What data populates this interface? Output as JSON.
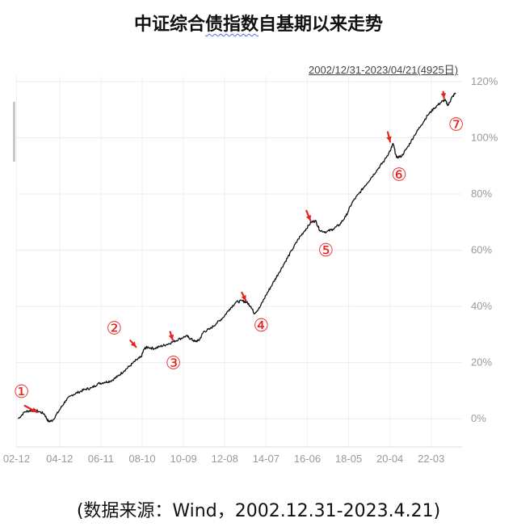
{
  "title": {
    "part1": "中证综合",
    "part2": "债指数",
    "part3": "自基期以来走势"
  },
  "date_range": "2002/12/31-2023/04/21(4925日)",
  "source": "(数据来源：Wind，2002.12.31-2023.4.21)",
  "chart_data": {
    "type": "line",
    "x_tick_labels": [
      "02-12",
      "04-12",
      "06-11",
      "08-10",
      "10-09",
      "12-08",
      "14-07",
      "16-06",
      "18-05",
      "20-04",
      "22-03"
    ],
    "y_tick_labels": [
      "0%",
      "20%",
      "40%",
      "60%",
      "80%",
      "100%",
      "120%"
    ],
    "ylim": [
      -10,
      122
    ],
    "xlim": [
      2002.9,
      2023.6
    ],
    "grid": true,
    "series": [
      {
        "x": [
          2002.99,
          2003.3,
          2003.6,
          2003.9,
          2004.2,
          2004.4,
          2004.6,
          2004.9,
          2005.2,
          2005.5,
          2005.8,
          2006.1,
          2006.4,
          2006.7,
          2007.0,
          2007.3,
          2007.6,
          2007.9,
          2008.2,
          2008.5,
          2008.7,
          2008.85,
          2009.0,
          2009.3,
          2009.6,
          2009.9,
          2010.2,
          2010.5,
          2010.8,
          2011.0,
          2011.2,
          2011.4,
          2011.6,
          2011.9,
          2012.2,
          2012.5,
          2012.8,
          2013.1,
          2013.4,
          2013.6,
          2013.8,
          2013.95,
          2014.2,
          2014.5,
          2014.8,
          2015.1,
          2015.4,
          2015.7,
          2016.0,
          2016.3,
          2016.6,
          2016.8,
          2017.0,
          2017.3,
          2017.6,
          2017.9,
          2018.2,
          2018.5,
          2018.8,
          2019.1,
          2019.4,
          2019.7,
          2020.0,
          2020.3,
          2020.4,
          2020.55,
          2020.8,
          2021.1,
          2021.4,
          2021.7,
          2022.0,
          2022.3,
          2022.6,
          2022.8,
          2022.95,
          2023.1,
          2023.3
        ],
        "values": [
          0,
          2.5,
          3,
          2.8,
          1.8,
          -1.0,
          -0.5,
          3,
          6.5,
          8.5,
          9.5,
          10.5,
          11,
          12.5,
          13,
          13.5,
          15,
          17,
          19,
          21,
          22,
          25,
          25.5,
          25,
          25.8,
          26.5,
          27.5,
          28.5,
          29.5,
          28.5,
          27.5,
          28,
          31,
          32,
          34,
          36,
          39,
          41.5,
          42,
          41.5,
          40,
          37.5,
          39.5,
          44,
          48,
          52,
          56,
          60,
          64,
          67,
          70,
          70.5,
          67,
          66.5,
          67.5,
          69,
          72,
          77,
          80,
          83,
          86,
          89,
          92,
          96,
          98,
          93,
          93.5,
          97,
          101,
          104.5,
          108,
          110.5,
          112.5,
          113.5,
          111.5,
          114,
          116
        ]
      }
    ],
    "annotations": [
      {
        "label": "①",
        "x": 2003.9,
        "y": 1.8
      },
      {
        "label": "②",
        "x": 2008.5,
        "y": 25
      },
      {
        "label": "③",
        "x": 2010.2,
        "y": 27.5
      },
      {
        "label": "④",
        "x": 2013.6,
        "y": 41.5
      },
      {
        "label": "⑤",
        "x": 2016.6,
        "y": 70
      },
      {
        "label": "⑥",
        "x": 2020.3,
        "y": 98
      },
      {
        "label": "⑦",
        "x": 2022.8,
        "y": 113.5
      }
    ]
  }
}
